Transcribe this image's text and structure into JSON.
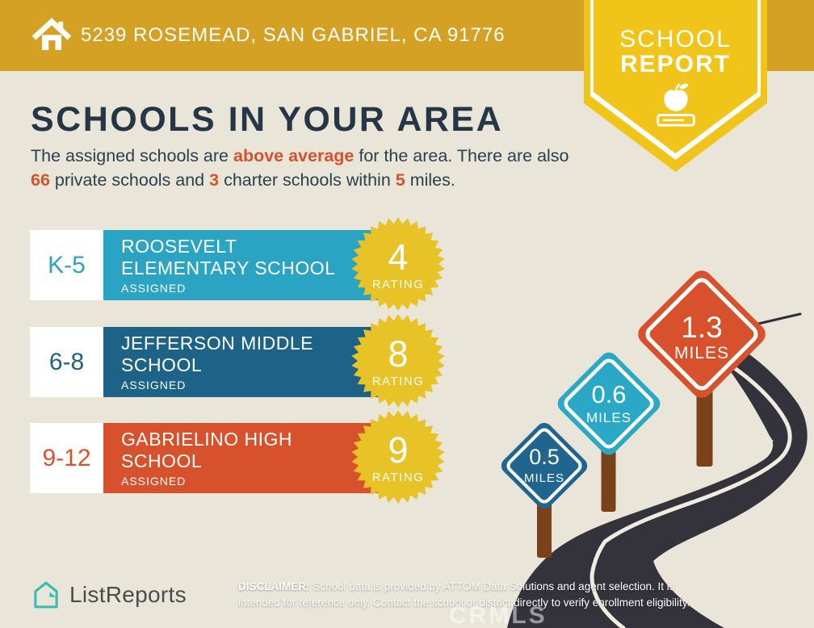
{
  "header": {
    "address": "5239 ROSEMEAD, SAN GABRIEL, CA 91776"
  },
  "ribbon": {
    "line1": "SCHOOL",
    "line2": "REPORT"
  },
  "title": "SCHOOLS IN YOUR AREA",
  "subtitle": {
    "s1": "The assigned schools are ",
    "h1": "above average",
    "s2": " for the area. There are also ",
    "h2": "66",
    "s3": " private schools and ",
    "h3": "3",
    "s4": " charter schools within ",
    "h4": "5",
    "s5": " miles."
  },
  "schools": [
    {
      "grades": "K-5",
      "name_line1": "ROOSEVELT",
      "name_line2": "ELEMENTARY SCHOOL",
      "status": "ASSIGNED",
      "rating": "4",
      "rating_label": "RATING",
      "color": "#2ba3c2"
    },
    {
      "grades": "6-8",
      "name_line1": "JEFFERSON MIDDLE",
      "name_line2": "SCHOOL",
      "status": "ASSIGNED",
      "rating": "8",
      "rating_label": "RATING",
      "color": "#1d6287"
    },
    {
      "grades": "9-12",
      "name_line1": "GABRIELINO HIGH",
      "name_line2": "SCHOOL",
      "status": "ASSIGNED",
      "rating": "9",
      "rating_label": "RATING",
      "color": "#d7512c"
    }
  ],
  "signs": [
    {
      "distance": "0.5",
      "unit": "MILES",
      "color": "#1f6590"
    },
    {
      "distance": "0.6",
      "unit": "MILES",
      "color": "#2ba8c6"
    },
    {
      "distance": "1.3",
      "unit": "MILES",
      "color": "#d7512c"
    }
  ],
  "footer": {
    "brand": "ListReports",
    "disclaimer_label": "DISCLAIMER:",
    "disclaimer_text": " School data is provided by ATTOM Data Solutions and agent selection. It is intended for reference only. Contact the school or district directly to verify enrollment eligibility.",
    "watermark": "CRMLS"
  },
  "colors": {
    "header_gold": "#d4a125",
    "ribbon_yellow": "#f0c419",
    "starburst_gold": "#e8c327",
    "background_cream": "#e9e5d9",
    "title_navy": "#253746",
    "highlight_orange": "#d7512c",
    "road_dark": "#34333b",
    "post_brown": "#7a421b",
    "brand_teal": "#35bdb2"
  }
}
